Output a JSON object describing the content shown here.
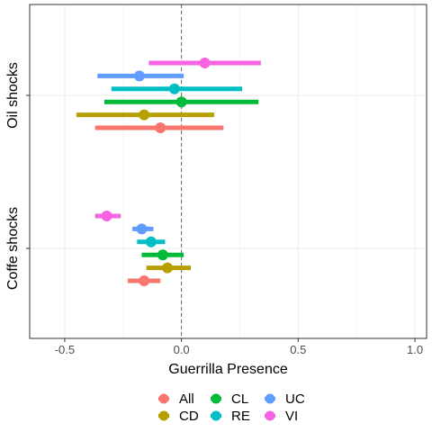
{
  "chart_data": {
    "type": "scatter",
    "subtype": "coefficient-plot-with-confidence-intervals",
    "xlabel": "Guerrilla Presence",
    "ylabel": "",
    "xlim": [
      -0.65,
      1.05
    ],
    "x_ticks": [
      -0.5,
      0.0,
      0.5,
      1.0
    ],
    "x_tick_labels": [
      "-0.5",
      "0.0",
      "0.5",
      "1.0"
    ],
    "reference_line": {
      "x": 0,
      "style": "dashed"
    },
    "grid": true,
    "legend_position": "bottom",
    "groups": [
      "Oil shocks",
      "Coffe shocks"
    ],
    "series": [
      {
        "name": "All",
        "color": "#F8766D",
        "points": [
          {
            "group": "Oil shocks",
            "estimate": -0.09,
            "low": -0.37,
            "high": 0.18
          },
          {
            "group": "Coffe shocks",
            "estimate": -0.16,
            "low": -0.23,
            "high": -0.09
          }
        ]
      },
      {
        "name": "CD",
        "color": "#B79F00",
        "points": [
          {
            "group": "Oil shocks",
            "estimate": -0.16,
            "low": -0.45,
            "high": 0.14
          },
          {
            "group": "Coffe shocks",
            "estimate": -0.06,
            "low": -0.15,
            "high": 0.04
          }
        ]
      },
      {
        "name": "CL",
        "color": "#00BA38",
        "points": [
          {
            "group": "Oil shocks",
            "estimate": 0.0,
            "low": -0.33,
            "high": 0.33
          },
          {
            "group": "Coffe shocks",
            "estimate": -0.08,
            "low": -0.17,
            "high": 0.01
          }
        ]
      },
      {
        "name": "RE",
        "color": "#00BFC4",
        "points": [
          {
            "group": "Oil shocks",
            "estimate": -0.03,
            "low": -0.3,
            "high": 0.26
          },
          {
            "group": "Coffe shocks",
            "estimate": -0.13,
            "low": -0.19,
            "high": -0.07
          }
        ]
      },
      {
        "name": "UC",
        "color": "#619CFF",
        "points": [
          {
            "group": "Oil shocks",
            "estimate": -0.18,
            "low": -0.36,
            "high": 0.01
          },
          {
            "group": "Coffe shocks",
            "estimate": -0.17,
            "low": -0.21,
            "high": -0.12
          }
        ]
      },
      {
        "name": "VI",
        "color": "#F564E3",
        "points": [
          {
            "group": "Oil shocks",
            "estimate": 0.1,
            "low": -0.14,
            "high": 0.34
          },
          {
            "group": "Coffe shocks",
            "estimate": -0.32,
            "low": -0.37,
            "high": -0.26
          }
        ]
      }
    ]
  }
}
